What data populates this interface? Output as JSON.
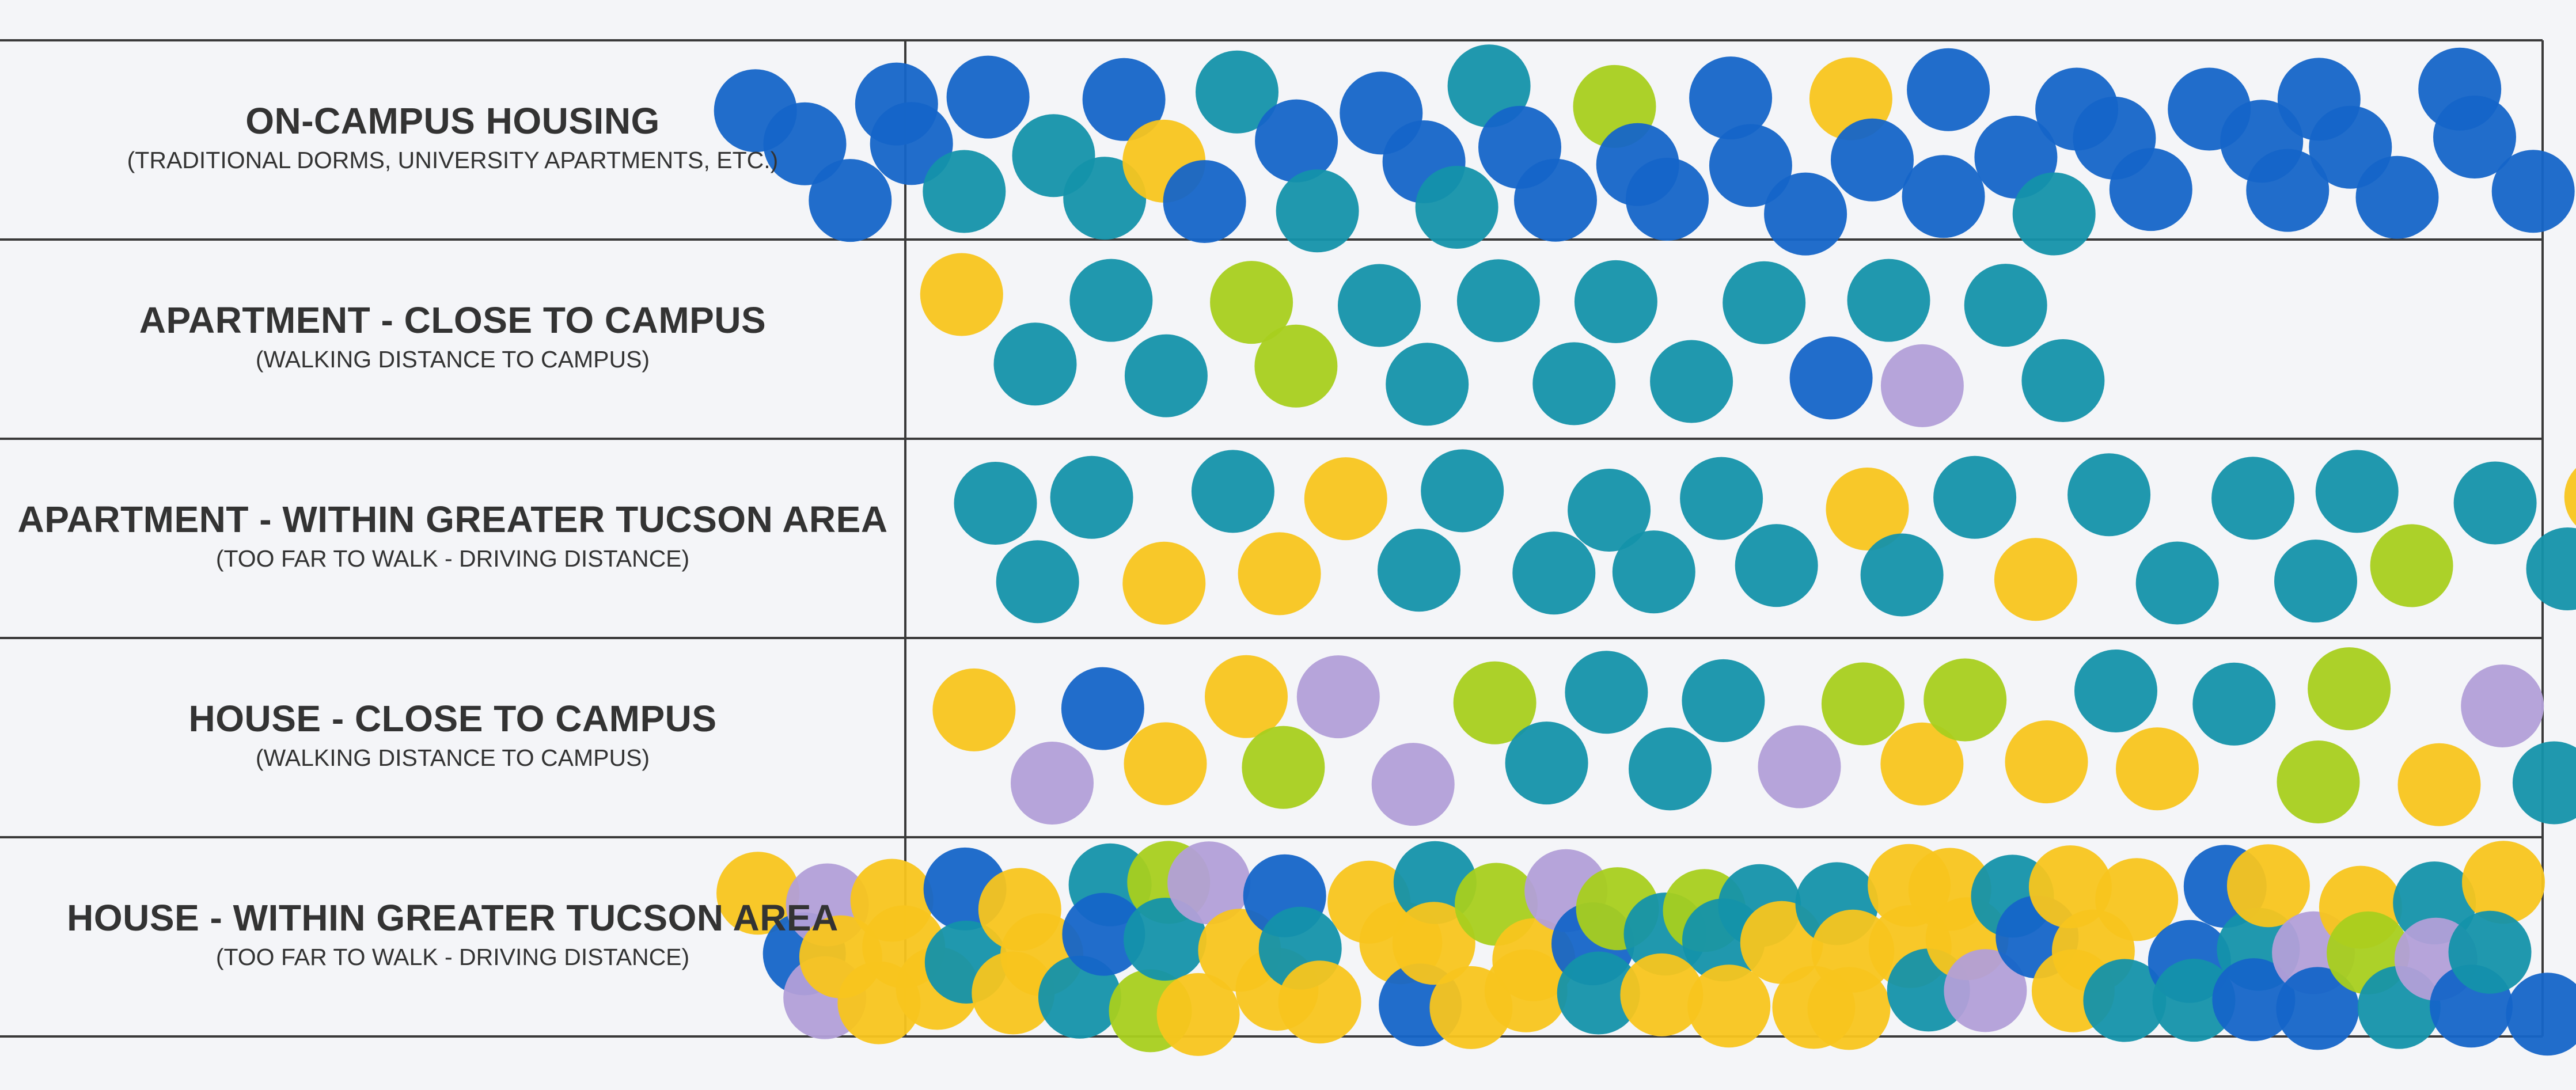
{
  "chart_data": {
    "type": "dot-board",
    "rows": [
      {
        "category": "ON-CAMPUS HOUSING",
        "detail": "(TRADITIONAL DORMS, UNIVERSITY APARTMENTS, ETC.)",
        "dot_counts": {
          "royal-blue": 34,
          "teal": 8,
          "yellow": 2,
          "lime": 1,
          "lavender": 0
        }
      },
      {
        "category": "APARTMENT - CLOSE TO CAMPUS",
        "detail": "(WALKING DISTANCE TO CAMPUS)",
        "dot_counts": {
          "royal-blue": 1,
          "teal": 13,
          "yellow": 1,
          "lime": 2,
          "lavender": 1
        }
      },
      {
        "category": "APARTMENT - WITHIN GREATER TUCSON AREA",
        "detail": "(TOO FAR TO WALK - DRIVING DISTANCE)",
        "dot_counts": {
          "royal-blue": 0,
          "teal": 20,
          "yellow": 6,
          "lime": 1,
          "lavender": 0
        }
      },
      {
        "category": "HOUSE - CLOSE TO CAMPUS",
        "detail": "(WALKING DISTANCE TO CAMPUS)",
        "dot_counts": {
          "royal-blue": 1,
          "teal": 7,
          "yellow": 7,
          "lime": 6,
          "lavender": 5
        }
      },
      {
        "category": "HOUSE - WITHIN GREATER TUCSON AREA",
        "detail": "(TOO FAR TO WALK - DRIVING DISTANCE)",
        "dot_counts": {
          "royal-blue": 13,
          "teal": 19,
          "yellow": 36,
          "lime": 6,
          "lavender": 7
        }
      }
    ],
    "dot_colors": {
      "royal-blue": "#1565c8",
      "teal": "#1492aa",
      "yellow": "#f8c51e",
      "lime": "#a8cf1e",
      "lavender": "#b29fd8"
    },
    "grid": true
  }
}
